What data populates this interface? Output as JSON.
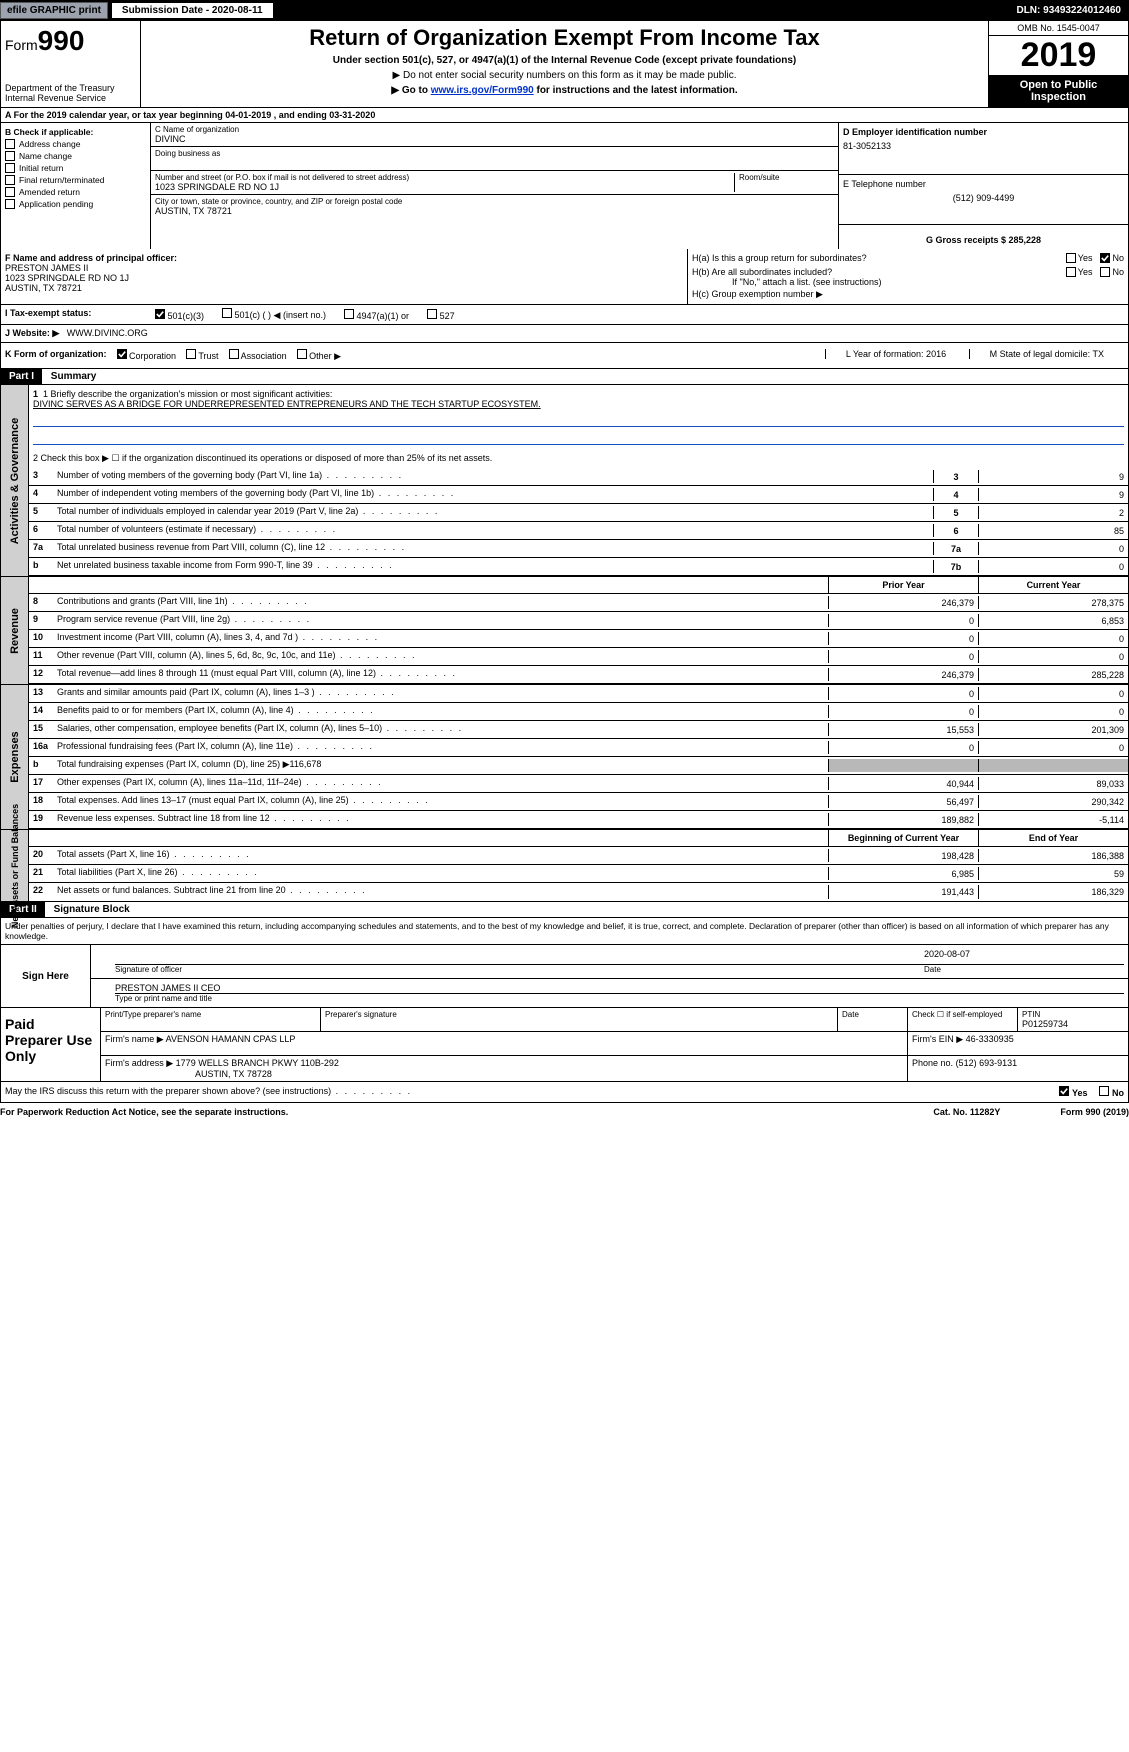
{
  "topbar": {
    "efile_btn": "efile GRAPHIC print",
    "submission_label": "Submission Date - 2020-08-11",
    "dln": "DLN: 93493224012460"
  },
  "header": {
    "form_prefix": "Form",
    "form_number": "990",
    "dept": "Department of the Treasury\nInternal Revenue Service",
    "title": "Return of Organization Exempt From Income Tax",
    "sub1": "Under section 501(c), 527, or 4947(a)(1) of the Internal Revenue Code (except private foundations)",
    "sub2a": "▶ Do not enter social security numbers on this form as it may be made public.",
    "sub2b_pre": "▶ Go to ",
    "sub2b_link": "www.irs.gov/Form990",
    "sub2b_post": " for instructions and the latest information.",
    "omb": "OMB No. 1545-0047",
    "year": "2019",
    "open": "Open to Public Inspection"
  },
  "row_a": "A   For the 2019 calendar year, or tax year beginning 04-01-2019       , and ending 03-31-2020",
  "section_b": {
    "title": "B Check if applicable:",
    "checks": [
      "Address change",
      "Name change",
      "Initial return",
      "Final return/terminated",
      "Amended return",
      "Application pending"
    ],
    "c_label": "C Name of organization",
    "c_value": "DIVINC",
    "dba_label": "Doing business as",
    "addr_label": "Number and street (or P.O. box if mail is not delivered to street address)",
    "room_label": "Room/suite",
    "addr_value": "1023 SPRINGDALE RD NO 1J",
    "city_label": "City or town, state or province, country, and ZIP or foreign postal code",
    "city_value": "AUSTIN, TX  78721",
    "d_label": "D Employer identification number",
    "d_value": "81-3052133",
    "e_label": "E Telephone number",
    "e_value": "(512) 909-4499",
    "g_label": "G Gross receipts $ 285,228"
  },
  "section_f": {
    "f_label": "F Name and address of principal officer:",
    "f_name": "PRESTON JAMES II",
    "f_addr1": "1023 SPRINGDALE RD NO 1J",
    "f_addr2": "AUSTIN, TX  78721",
    "ha": "H(a)   Is this a group return for subordinates?",
    "hb": "H(b)   Are all subordinates included?",
    "hb_note": "If \"No,\" attach a list. (see instructions)",
    "hc": "H(c)   Group exemption number ▶",
    "yes": "Yes",
    "no": "No"
  },
  "row_i": {
    "label": "I     Tax-exempt status:",
    "opts": [
      "501(c)(3)",
      "501(c) (  ) ◀ (insert no.)",
      "4947(a)(1) or",
      "527"
    ]
  },
  "row_j": {
    "label": "J    Website: ▶",
    "value": "WWW.DIVINC.ORG"
  },
  "row_k": {
    "label": "K Form of organization:",
    "opts": [
      "Corporation",
      "Trust",
      "Association",
      "Other ▶"
    ],
    "l": "L Year of formation: 2016",
    "m": "M State of legal domicile: TX"
  },
  "part1": {
    "header": "Part I",
    "title": "Summary",
    "line1_label": "1  Briefly describe the organization's mission or most significant activities:",
    "line1_text": "DIVINC SERVES AS A BRIDGE FOR UNDERREPRESENTED ENTREPRENEURS AND THE TECH STARTUP ECOSYSTEM.",
    "line2": "2    Check this box ▶ ☐  if the organization discontinued its operations or disposed of more than 25% of its net assets.",
    "sidebar1": "Activities & Governance",
    "sidebar2": "Revenue",
    "sidebar3": "Expenses",
    "sidebar4": "Net Assets or Fund Balances",
    "small_rows": [
      {
        "n": "3",
        "d": "Number of voting members of the governing body (Part VI, line 1a)",
        "box": "3",
        "v": "9"
      },
      {
        "n": "4",
        "d": "Number of independent voting members of the governing body (Part VI, line 1b)",
        "box": "4",
        "v": "9"
      },
      {
        "n": "5",
        "d": "Total number of individuals employed in calendar year 2019 (Part V, line 2a)",
        "box": "5",
        "v": "2"
      },
      {
        "n": "6",
        "d": "Total number of volunteers (estimate if necessary)",
        "box": "6",
        "v": "85"
      },
      {
        "n": "7a",
        "d": "Total unrelated business revenue from Part VIII, column (C), line 12",
        "box": "7a",
        "v": "0"
      },
      {
        "n": "b",
        "d": "Net unrelated business taxable income from Form 990-T, line 39",
        "box": "7b",
        "v": "0"
      }
    ],
    "py_header_prior": "Prior Year",
    "py_header_curr": "Current Year",
    "revenue_rows": [
      {
        "n": "8",
        "d": "Contributions and grants (Part VIII, line 1h)",
        "py": "246,379",
        "cy": "278,375"
      },
      {
        "n": "9",
        "d": "Program service revenue (Part VIII, line 2g)",
        "py": "0",
        "cy": "6,853"
      },
      {
        "n": "10",
        "d": "Investment income (Part VIII, column (A), lines 3, 4, and 7d )",
        "py": "0",
        "cy": "0"
      },
      {
        "n": "11",
        "d": "Other revenue (Part VIII, column (A), lines 5, 6d, 8c, 9c, 10c, and 11e)",
        "py": "0",
        "cy": "0"
      },
      {
        "n": "12",
        "d": "Total revenue—add lines 8 through 11 (must equal Part VIII, column (A), line 12)",
        "py": "246,379",
        "cy": "285,228"
      }
    ],
    "expense_rows": [
      {
        "n": "13",
        "d": "Grants and similar amounts paid (Part IX, column (A), lines 1–3 )",
        "py": "0",
        "cy": "0"
      },
      {
        "n": "14",
        "d": "Benefits paid to or for members (Part IX, column (A), line 4)",
        "py": "0",
        "cy": "0"
      },
      {
        "n": "15",
        "d": "Salaries, other compensation, employee benefits (Part IX, column (A), lines 5–10)",
        "py": "15,553",
        "cy": "201,309"
      },
      {
        "n": "16a",
        "d": "Professional fundraising fees (Part IX, column (A), line 11e)",
        "py": "0",
        "cy": "0"
      },
      {
        "n": "b",
        "d": "Total fundraising expenses (Part IX, column (D), line 25) ▶116,678",
        "py": "",
        "cy": "",
        "shaded": true
      },
      {
        "n": "17",
        "d": "Other expenses (Part IX, column (A), lines 11a–11d, 11f–24e)",
        "py": "40,944",
        "cy": "89,033"
      },
      {
        "n": "18",
        "d": "Total expenses. Add lines 13–17 (must equal Part IX, column (A), line 25)",
        "py": "56,497",
        "cy": "290,342"
      },
      {
        "n": "19",
        "d": "Revenue less expenses. Subtract line 18 from line 12",
        "py": "189,882",
        "cy": "-5,114"
      }
    ],
    "na_header_b": "Beginning of Current Year",
    "na_header_e": "End of Year",
    "na_rows": [
      {
        "n": "20",
        "d": "Total assets (Part X, line 16)",
        "py": "198,428",
        "cy": "186,388"
      },
      {
        "n": "21",
        "d": "Total liabilities (Part X, line 26)",
        "py": "6,985",
        "cy": "59"
      },
      {
        "n": "22",
        "d": "Net assets or fund balances. Subtract line 21 from line 20",
        "py": "191,443",
        "cy": "186,329"
      }
    ]
  },
  "part2": {
    "header": "Part II",
    "title": "Signature Block",
    "penalty": "Under penalties of perjury, I declare that I have examined this return, including accompanying schedules and statements, and to the best of my knowledge and belief, it is true, correct, and complete. Declaration of preparer (other than officer) is based on all information of which preparer has any knowledge.",
    "sign_here": "Sign Here",
    "sig_officer": "Signature of officer",
    "sig_date": "2020-08-07",
    "date_label": "Date",
    "officer_name": "PRESTON JAMES II CEO",
    "officer_title_label": "Type or print name and title",
    "paid_label": "Paid Preparer Use Only",
    "prep_name_label": "Print/Type preparer's name",
    "prep_sig_label": "Preparer's signature",
    "prep_date_label": "Date",
    "check_self": "Check ☐ if self-employed",
    "ptin_label": "PTIN",
    "ptin": "P01259734",
    "firm_name_label": "Firm's name    ▶",
    "firm_name": "AVENSON HAMANN CPAS LLP",
    "firm_ein_label": "Firm's EIN ▶",
    "firm_ein": "46-3330935",
    "firm_addr_label": "Firm's address ▶",
    "firm_addr1": "1779 WELLS BRANCH PKWY 110B-292",
    "firm_addr2": "AUSTIN, TX  78728",
    "phone_label": "Phone no.",
    "phone": "(512) 693-9131",
    "irs_q": "May the IRS discuss this return with the preparer shown above? (see instructions)",
    "footer_left": "For Paperwork Reduction Act Notice, see the separate instructions.",
    "footer_mid": "Cat. No. 11282Y",
    "footer_right": "Form 990 (2019)"
  }
}
